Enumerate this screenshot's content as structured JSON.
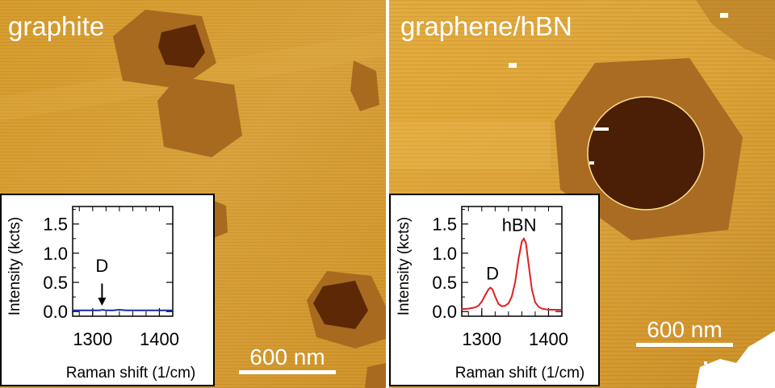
{
  "panels": [
    {
      "title": "graphite",
      "scalebar_label": "600 nm",
      "spectrum": {
        "type": "line",
        "title": "",
        "xlabel": "Raman shift (1/cm)",
        "ylabel": "Intensity (kcts)",
        "xlim": [
          1270,
          1420
        ],
        "ylim": [
          -0.08,
          1.8
        ],
        "xticks": [
          1300,
          1400
        ],
        "yticks": [
          0.0,
          0.5,
          1.0,
          1.5
        ],
        "ytick_labels": [
          "0.0",
          "0.5",
          "1.0",
          "1.5"
        ],
        "xtick_labels": [
          "1300",
          "1400"
        ],
        "color": "#1a2aa8",
        "series": [
          {
            "x": [
              1270,
              1280,
              1290,
              1300,
              1310,
              1315,
              1320,
              1325,
              1330,
              1340,
              1350,
              1360,
              1370,
              1380,
              1390,
              1400,
              1410,
              1420
            ],
            "y": [
              0.02,
              0.02,
              0.02,
              0.02,
              0.02,
              0.03,
              0.02,
              0.02,
              0.02,
              0.03,
              0.02,
              0.02,
              0.02,
              0.02,
              0.02,
              0.02,
              0.02,
              0.02
            ]
          }
        ],
        "annotations": [
          {
            "text": "D",
            "x": 1314,
            "y": 0.68,
            "arrow_from_y": 0.48,
            "arrow_to_y": 0.1
          }
        ]
      }
    },
    {
      "title": "graphene/hBN",
      "scalebar_label": "600 nm",
      "spectrum": {
        "type": "line",
        "title": "",
        "xlabel": "Raman shift (1/cm)",
        "ylabel": "Intensity (kcts)",
        "xlim": [
          1270,
          1420
        ],
        "ylim": [
          -0.08,
          1.8
        ],
        "xticks": [
          1300,
          1400
        ],
        "yticks": [
          0.0,
          0.5,
          1.0,
          1.5
        ],
        "ytick_labels": [
          "0.0",
          "0.5",
          "1.0",
          "1.5"
        ],
        "xtick_labels": [
          "1300",
          "1400"
        ],
        "color": "#e02020",
        "series": [
          {
            "x": [
              1270,
              1280,
              1290,
              1295,
              1300,
              1305,
              1310,
              1313,
              1316,
              1320,
              1325,
              1330,
              1335,
              1340,
              1345,
              1350,
              1355,
              1360,
              1363,
              1366,
              1370,
              1375,
              1380,
              1385,
              1390,
              1400,
              1410,
              1420
            ],
            "y": [
              0.04,
              0.05,
              0.07,
              0.1,
              0.17,
              0.28,
              0.38,
              0.41,
              0.38,
              0.26,
              0.13,
              0.09,
              0.1,
              0.14,
              0.26,
              0.5,
              0.9,
              1.2,
              1.25,
              1.18,
              0.82,
              0.38,
              0.16,
              0.08,
              0.05,
              0.03,
              0.03,
              0.03
            ]
          }
        ],
        "annotations": [
          {
            "text": "D",
            "x": 1316,
            "y": 0.55
          },
          {
            "text": "hBN",
            "x": 1356,
            "y": 1.38
          }
        ]
      }
    }
  ]
}
